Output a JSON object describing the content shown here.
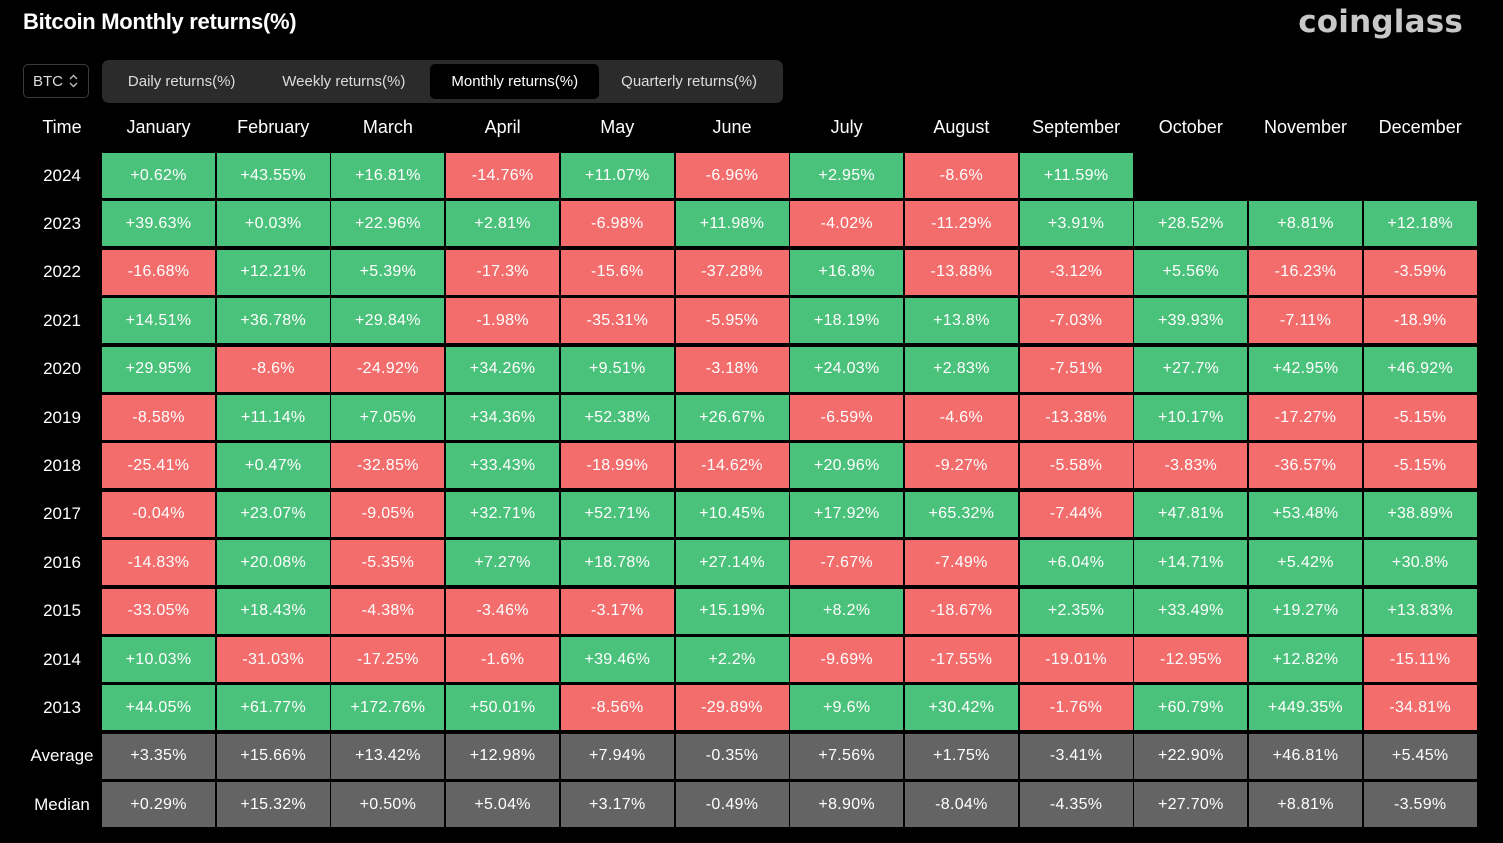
{
  "header": {
    "title": "Bitcoin Monthly returns(%)",
    "logo": "coinglass"
  },
  "asset_select": {
    "value": "BTC",
    "icon": "chevron-up-down-icon"
  },
  "tabs": [
    {
      "label": "Daily returns(%)",
      "active": false
    },
    {
      "label": "Weekly returns(%)",
      "active": false
    },
    {
      "label": "Monthly returns(%)",
      "active": true
    },
    {
      "label": "Quarterly returns(%)",
      "active": false
    }
  ],
  "colors": {
    "positive": "#4bc27b",
    "negative": "#f46d6d",
    "stat": "#646464"
  },
  "chart_data": {
    "type": "table",
    "columns": [
      "Time",
      "January",
      "February",
      "March",
      "April",
      "May",
      "June",
      "July",
      "August",
      "September",
      "October",
      "November",
      "December"
    ],
    "rows": [
      {
        "year": "2024",
        "values": [
          "+0.62%",
          "+43.55%",
          "+16.81%",
          "-14.76%",
          "+11.07%",
          "-6.96%",
          "+2.95%",
          "-8.6%",
          "+11.59%",
          "",
          "",
          ""
        ]
      },
      {
        "year": "2023",
        "values": [
          "+39.63%",
          "+0.03%",
          "+22.96%",
          "+2.81%",
          "-6.98%",
          "+11.98%",
          "-4.02%",
          "-11.29%",
          "+3.91%",
          "+28.52%",
          "+8.81%",
          "+12.18%"
        ]
      },
      {
        "year": "2022",
        "values": [
          "-16.68%",
          "+12.21%",
          "+5.39%",
          "-17.3%",
          "-15.6%",
          "-37.28%",
          "+16.8%",
          "-13.88%",
          "-3.12%",
          "+5.56%",
          "-16.23%",
          "-3.59%"
        ]
      },
      {
        "year": "2021",
        "values": [
          "+14.51%",
          "+36.78%",
          "+29.84%",
          "-1.98%",
          "-35.31%",
          "-5.95%",
          "+18.19%",
          "+13.8%",
          "-7.03%",
          "+39.93%",
          "-7.11%",
          "-18.9%"
        ]
      },
      {
        "year": "2020",
        "values": [
          "+29.95%",
          "-8.6%",
          "-24.92%",
          "+34.26%",
          "+9.51%",
          "-3.18%",
          "+24.03%",
          "+2.83%",
          "-7.51%",
          "+27.7%",
          "+42.95%",
          "+46.92%"
        ]
      },
      {
        "year": "2019",
        "values": [
          "-8.58%",
          "+11.14%",
          "+7.05%",
          "+34.36%",
          "+52.38%",
          "+26.67%",
          "-6.59%",
          "-4.6%",
          "-13.38%",
          "+10.17%",
          "-17.27%",
          "-5.15%"
        ]
      },
      {
        "year": "2018",
        "values": [
          "-25.41%",
          "+0.47%",
          "-32.85%",
          "+33.43%",
          "-18.99%",
          "-14.62%",
          "+20.96%",
          "-9.27%",
          "-5.58%",
          "-3.83%",
          "-36.57%",
          "-5.15%"
        ]
      },
      {
        "year": "2017",
        "values": [
          "-0.04%",
          "+23.07%",
          "-9.05%",
          "+32.71%",
          "+52.71%",
          "+10.45%",
          "+17.92%",
          "+65.32%",
          "-7.44%",
          "+47.81%",
          "+53.48%",
          "+38.89%"
        ]
      },
      {
        "year": "2016",
        "values": [
          "-14.83%",
          "+20.08%",
          "-5.35%",
          "+7.27%",
          "+18.78%",
          "+27.14%",
          "-7.67%",
          "-7.49%",
          "+6.04%",
          "+14.71%",
          "+5.42%",
          "+30.8%"
        ]
      },
      {
        "year": "2015",
        "values": [
          "-33.05%",
          "+18.43%",
          "-4.38%",
          "-3.46%",
          "-3.17%",
          "+15.19%",
          "+8.2%",
          "-18.67%",
          "+2.35%",
          "+33.49%",
          "+19.27%",
          "+13.83%"
        ]
      },
      {
        "year": "2014",
        "values": [
          "+10.03%",
          "-31.03%",
          "-17.25%",
          "-1.6%",
          "+39.46%",
          "+2.2%",
          "-9.69%",
          "-17.55%",
          "-19.01%",
          "-12.95%",
          "+12.82%",
          "-15.11%"
        ]
      },
      {
        "year": "2013",
        "values": [
          "+44.05%",
          "+61.77%",
          "+172.76%",
          "+50.01%",
          "-8.56%",
          "-29.89%",
          "+9.6%",
          "+30.42%",
          "-1.76%",
          "+60.79%",
          "+449.35%",
          "-34.81%"
        ]
      }
    ],
    "summary": [
      {
        "label": "Average",
        "values": [
          "+3.35%",
          "+15.66%",
          "+13.42%",
          "+12.98%",
          "+7.94%",
          "-0.35%",
          "+7.56%",
          "+1.75%",
          "-3.41%",
          "+22.90%",
          "+46.81%",
          "+5.45%"
        ]
      },
      {
        "label": "Median",
        "values": [
          "+0.29%",
          "+15.32%",
          "+0.50%",
          "+5.04%",
          "+3.17%",
          "-0.49%",
          "+8.90%",
          "-8.04%",
          "-4.35%",
          "+27.70%",
          "+8.81%",
          "-3.59%"
        ]
      }
    ]
  }
}
